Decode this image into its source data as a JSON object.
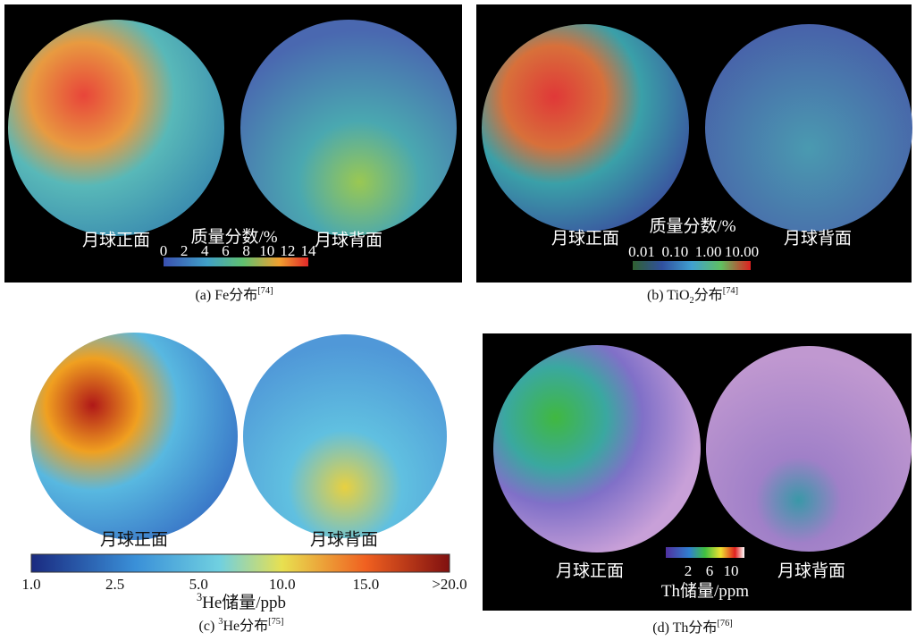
{
  "panels": [
    {
      "front_label": "月球正面",
      "back_label": "月球背面",
      "scale_title": [
        {
          "text": "质量分数/%"
        }
      ],
      "scale_ticks": [
        "0",
        "2",
        "4",
        "6",
        "8",
        "10",
        "12",
        "14"
      ],
      "caption": [
        {
          "text": "(a) Fe分布"
        },
        {
          "sup": "[74]"
        }
      ]
    },
    {
      "front_label": "月球正面",
      "back_label": "月球背面",
      "scale_title": [
        {
          "text": "质量分数/%"
        }
      ],
      "scale_ticks": [
        "0.01",
        "0.10",
        "1.00",
        "10.00"
      ],
      "caption": [
        {
          "text": "(b) TiO"
        },
        {
          "sub": "2"
        },
        {
          "text": "分布"
        },
        {
          "sup": "[74]"
        }
      ]
    },
    {
      "front_label": "月球正面",
      "back_label": "月球背面",
      "scale_title": [
        {
          "sup": "3"
        },
        {
          "text": "He储量/ppb"
        }
      ],
      "scale_ticks": [
        "1.0",
        "2.5",
        "5.0",
        "10.0",
        "15.0",
        ">20.0"
      ],
      "caption": [
        {
          "text": "(c) "
        },
        {
          "sup": "3"
        },
        {
          "text": "He分布"
        },
        {
          "sup": "[75]"
        }
      ]
    },
    {
      "front_label": "月球正面",
      "back_label": "月球背面",
      "scale_title": [
        {
          "text": "Th储量/ppm"
        }
      ],
      "scale_ticks": [
        "2",
        "6",
        "10"
      ],
      "caption": [
        {
          "text": "(d) Th分布"
        },
        {
          "sup": "[76]"
        }
      ]
    }
  ]
}
